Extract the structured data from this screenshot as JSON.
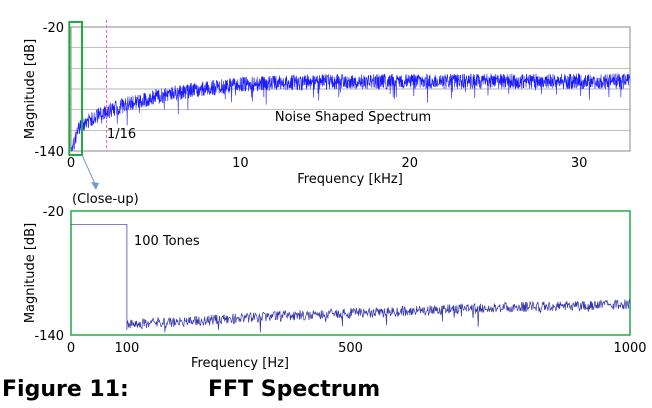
{
  "chart_data": [
    {
      "type": "line",
      "title": "",
      "xlabel": "Frequency [kHz]",
      "ylabel": "Magnitude [dB]",
      "xlim": [
        0,
        33
      ],
      "ylim": [
        -140,
        -20
      ],
      "x_ticks": [
        "0",
        "10",
        "20",
        "30"
      ],
      "y_ticks": [
        "-20",
        "-140"
      ],
      "grid": true,
      "series": [
        {
          "color": "#1a1aff",
          "x": [
            0,
            0.25,
            0.5,
            1,
            1.5,
            2,
            3,
            4,
            5,
            6,
            7,
            8,
            9,
            10,
            12,
            14,
            16,
            18,
            20,
            22,
            24,
            26,
            28,
            30,
            32,
            33
          ],
          "y": [
            -135,
            -120,
            -110,
            -104,
            -99,
            -95,
            -89,
            -84,
            -80,
            -77,
            -74,
            -72,
            -70,
            -68,
            -67,
            -66,
            -65.5,
            -65.5,
            -65,
            -65,
            -65,
            -65,
            -65,
            -65,
            -65,
            -65
          ],
          "spread_db": 15
        }
      ],
      "annotations": [
        {
          "text": "Noise Shaped Spectrum",
          "x": 16,
          "y": -110
        },
        {
          "text": "1/16",
          "x": 2.2,
          "y": -127
        }
      ],
      "marker_line": {
        "x": 2.1,
        "color": "#ff55dd"
      },
      "closeup_box": {
        "x0": -0.1,
        "x1": 0.65,
        "color": "#22aa44"
      }
    },
    {
      "type": "line",
      "title": "",
      "xlabel": "Frequency [Hz]",
      "ylabel": "Magnitude [dB]",
      "xlim": [
        0,
        1000
      ],
      "ylim": [
        -140,
        -20
      ],
      "x_ticks": [
        "0",
        "100",
        "500",
        "1000"
      ],
      "y_ticks": [
        "-20",
        "-140"
      ],
      "grid": false,
      "series": [
        {
          "color": "#3333aa",
          "x": [
            0,
            99,
            100,
            101,
            150,
            200,
            300,
            400,
            500,
            600,
            700,
            800,
            900,
            1000
          ],
          "y": [
            -33,
            -33,
            -33,
            -130,
            -128,
            -127,
            -124,
            -121,
            -119,
            -117,
            -115,
            -113,
            -112,
            -110
          ],
          "spread_db": 10
        }
      ],
      "annotations": [
        {
          "text": "100 Tones",
          "x": 115,
          "y": -48
        }
      ]
    }
  ],
  "connector_label": "(Close-up)",
  "caption": {
    "number": "Figure 11:",
    "title": "FFT Spectrum"
  }
}
